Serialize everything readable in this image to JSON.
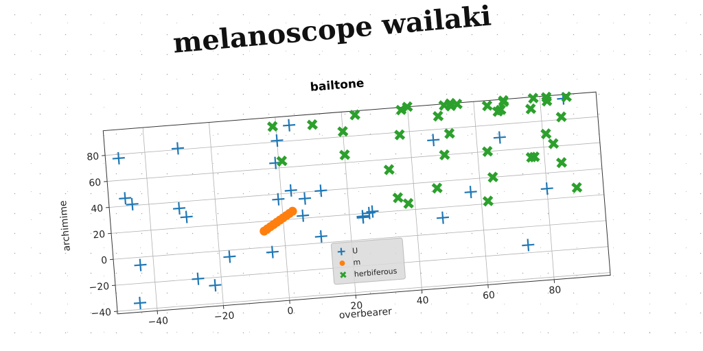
{
  "page_title": "melanoscope wailaki",
  "chart_data": {
    "type": "scatter",
    "title": "bailtone",
    "xlabel": "overbearer",
    "ylabel": "archimime",
    "xlim": [
      -52,
      97
    ],
    "ylim": [
      -42,
      99
    ],
    "xticks": [
      -40,
      -20,
      0,
      20,
      40,
      60,
      80
    ],
    "yticks": [
      -40,
      -20,
      0,
      20,
      40,
      60,
      80
    ],
    "grid": true,
    "legend_position": "lower-center",
    "series": [
      {
        "name": "U",
        "marker": "plus",
        "color": "#1f77b4",
        "x": [
          -48,
          -47,
          -45,
          -44,
          -45,
          -30,
          -29,
          -31,
          -27,
          -22,
          -17,
          -4,
          -1,
          -1,
          0,
          4,
          3,
          6,
          7,
          11,
          12,
          24,
          24,
          26,
          27,
          47,
          48,
          57,
          67,
          73,
          80,
          87
        ],
        "y": [
          77,
          46,
          41,
          -6,
          -35,
          81,
          28,
          35,
          -20,
          -26,
          -5,
          -4,
          64,
          36,
          81,
          92,
          42,
          22,
          35,
          5,
          40,
          18,
          17,
          20,
          21,
          72,
          12,
          30,
          70,
          -14,
          28,
          96
        ]
      },
      {
        "name": "m",
        "marker": "circle",
        "color": "#ff7f0e",
        "x": [
          -6,
          -5,
          -4,
          -3,
          -2,
          -1,
          0,
          1,
          2,
          3
        ],
        "y": [
          12.5,
          14,
          15.5,
          17,
          18.5,
          20,
          21.5,
          23,
          24.5,
          26
        ]
      },
      {
        "name": "herbiferous",
        "marker": "x",
        "color": "#2ca02c",
        "x": [
          -1,
          1,
          11,
          20,
          20,
          24,
          33,
          35,
          37,
          38,
          38,
          40,
          47,
          49,
          50,
          51,
          52,
          53,
          53,
          55,
          62,
          63,
          64,
          64,
          67,
          68,
          69,
          69,
          76,
          77,
          77,
          78,
          81,
          82,
          82,
          83,
          85,
          86,
          88,
          89
        ],
        "y": [
          92,
          65,
          91,
          66,
          84,
          96,
          52,
          30,
          78,
          25,
          97,
          99,
          35,
          90,
          60,
          98,
          76,
          97,
          99,
          98,
          22,
          60,
          40,
          95,
          90,
          91,
          98,
          97,
          53,
          53,
          90,
          98,
          70,
          95,
          98,
          62,
          47,
          82,
          97,
          27
        ]
      }
    ]
  }
}
